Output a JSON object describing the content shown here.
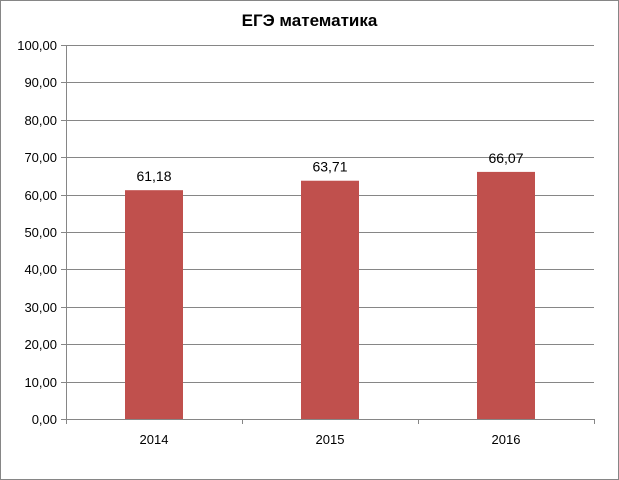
{
  "chart_data": {
    "type": "bar",
    "title": "ЕГЭ математика",
    "xlabel": "",
    "ylabel": "",
    "categories": [
      "2014",
      "2015",
      "2016"
    ],
    "values": [
      61.18,
      63.71,
      66.07
    ],
    "value_labels": [
      "61,18",
      "63,71",
      "66,07"
    ],
    "ylim": [
      0,
      100
    ],
    "ytick_step": 10,
    "ytick_labels": [
      "0,00",
      "10,00",
      "20,00",
      "30,00",
      "40,00",
      "50,00",
      "60,00",
      "70,00",
      "80,00",
      "90,00",
      "100,00"
    ],
    "grid": true,
    "legend": "none",
    "colors": {
      "bar": "#C0504D",
      "grid": "#868686"
    }
  }
}
